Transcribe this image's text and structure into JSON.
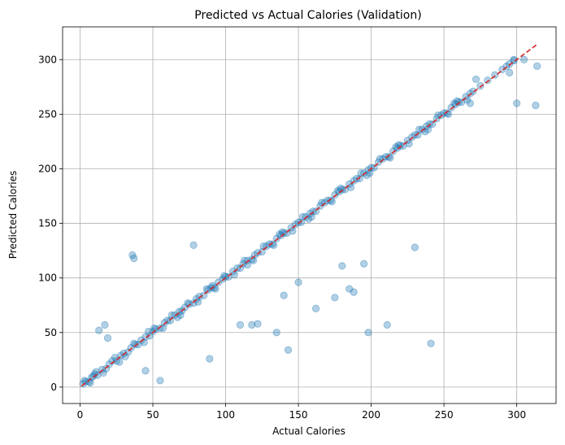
{
  "chart_data": {
    "type": "scatter",
    "title": "Predicted vs Actual Calories (Validation)",
    "xlabel": "Actual Calories",
    "ylabel": "Predicted Calories",
    "xlim": [
      -12,
      327
    ],
    "ylim": [
      -15,
      330
    ],
    "xticks": [
      0,
      50,
      100,
      150,
      200,
      250,
      300
    ],
    "yticks": [
      0,
      50,
      100,
      150,
      200,
      250,
      300
    ],
    "xtick_labels": [
      "0",
      "50",
      "100",
      "150",
      "200",
      "250",
      "300"
    ],
    "ytick_labels": [
      "0",
      "50",
      "100",
      "150",
      "200",
      "250",
      "300"
    ],
    "grid": true,
    "point_color": "#1f77b4",
    "point_alpha": 0.35,
    "reference_line": {
      "x": [
        1,
        314
      ],
      "y": [
        1,
        314
      ],
      "color": "#d62728",
      "style": "dashed"
    },
    "series": [
      {
        "name": "Validation",
        "x": [
          2,
          4,
          6,
          8,
          10,
          12,
          15,
          18,
          20,
          22,
          25,
          28,
          30,
          33,
          35,
          38,
          40,
          42,
          45,
          48,
          50,
          52,
          55,
          58,
          60,
          62,
          65,
          68,
          70,
          72,
          75,
          78,
          80,
          82,
          85,
          88,
          90,
          92,
          95,
          98,
          100,
          102,
          105,
          108,
          110,
          112,
          115,
          118,
          120,
          122,
          125,
          128,
          130,
          132,
          135,
          138,
          140,
          142,
          145,
          148,
          150,
          152,
          155,
          158,
          160,
          162,
          165,
          168,
          170,
          172,
          175,
          178,
          180,
          182,
          185,
          188,
          190,
          192,
          195,
          198,
          200,
          202,
          205,
          208,
          210,
          212,
          215,
          218,
          220,
          222,
          225,
          228,
          230,
          232,
          235,
          238,
          240,
          242,
          245,
          248,
          250,
          252,
          255,
          258,
          260,
          262,
          265,
          268,
          270,
          275,
          280,
          285,
          290,
          293,
          295,
          298,
          3,
          7,
          11,
          16,
          24,
          31,
          37,
          44,
          51,
          57,
          63,
          69,
          74,
          81,
          87,
          93,
          99,
          106,
          113,
          119,
          126,
          133,
          139,
          146,
          153,
          159,
          166,
          173,
          179,
          186,
          193,
          199,
          206,
          213,
          219,
          226,
          233,
          239,
          246,
          253,
          259,
          266,
          13,
          17,
          19,
          36,
          37,
          45,
          55,
          78,
          89,
          110,
          118,
          122,
          135,
          140,
          143,
          150,
          162,
          175,
          180,
          185,
          188,
          195,
          198,
          211,
          230,
          241,
          268,
          272,
          295,
          298,
          305,
          313,
          314,
          300,
          9,
          27,
          47,
          67,
          91,
          115,
          137,
          157,
          177,
          197,
          217,
          237,
          257
        ],
        "y": [
          3,
          5,
          5,
          9,
          12,
          11,
          16,
          17,
          21,
          24,
          24,
          29,
          31,
          32,
          36,
          39,
          39,
          43,
          46,
          47,
          51,
          53,
          54,
          59,
          61,
          61,
          66,
          69,
          70,
          73,
          76,
          77,
          81,
          83,
          84,
          89,
          91,
          91,
          96,
          99,
          101,
          101,
          106,
          109,
          109,
          113,
          116,
          117,
          121,
          123,
          124,
          129,
          131,
          131,
          136,
          139,
          141,
          141,
          146,
          149,
          151,
          151,
          156,
          159,
          161,
          161,
          166,
          169,
          171,
          171,
          176,
          179,
          181,
          181,
          186,
          189,
          191,
          191,
          196,
          199,
          201,
          201,
          206,
          209,
          211,
          211,
          216,
          219,
          221,
          221,
          226,
          229,
          231,
          231,
          236,
          239,
          241,
          241,
          246,
          249,
          251,
          251,
          256,
          259,
          261,
          261,
          266,
          269,
          271,
          276,
          281,
          286,
          291,
          294,
          296,
          299,
          6,
          4,
          14,
          13,
          27,
          28,
          40,
          41,
          54,
          54,
          66,
          66,
          77,
          78,
          90,
          90,
          102,
          103,
          116,
          116,
          129,
          130,
          142,
          143,
          156,
          156,
          169,
          170,
          182,
          183,
          196,
          196,
          209,
          210,
          222,
          223,
          236,
          236,
          249,
          250,
          262,
          263,
          52,
          57,
          45,
          121,
          118,
          15,
          6,
          130,
          26,
          57,
          57,
          58,
          50,
          84,
          34,
          96,
          72,
          82,
          111,
          90,
          87,
          113,
          50,
          57,
          128,
          40,
          260,
          282,
          288,
          300,
          300,
          258,
          294,
          260,
          10,
          23,
          51,
          64,
          93,
          112,
          140,
          154,
          180,
          194,
          220,
          234,
          260
        ]
      }
    ]
  }
}
